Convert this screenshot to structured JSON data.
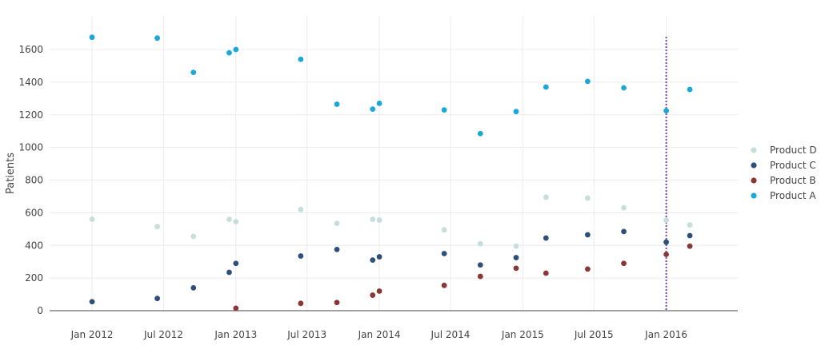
{
  "chart_data": {
    "type": "scatter",
    "title": "",
    "xlabel": "",
    "ylabel": "Patients",
    "ylim": [
      -50,
      1780
    ],
    "xlim": [
      "2011-09-15",
      "2016-07-01"
    ],
    "y_ticks": [
      0,
      200,
      400,
      600,
      800,
      1000,
      1200,
      1400,
      1600
    ],
    "x_ticks": [
      {
        "date": "2012-01-01",
        "label": "Jan 2012"
      },
      {
        "date": "2012-07-01",
        "label": "Jul 2012"
      },
      {
        "date": "2013-01-01",
        "label": "Jan 2013"
      },
      {
        "date": "2013-07-01",
        "label": "Jul 2013"
      },
      {
        "date": "2014-01-01",
        "label": "Jan 2014"
      },
      {
        "date": "2014-07-01",
        "label": "Jul 2014"
      },
      {
        "date": "2015-01-01",
        "label": "Jan 2015"
      },
      {
        "date": "2015-07-01",
        "label": "Jul 2015"
      },
      {
        "date": "2016-01-01",
        "label": "Jan 2016"
      }
    ],
    "grid": true,
    "legend_position": "right",
    "legend": [
      "Product D",
      "Product C",
      "Product B",
      "Product A"
    ],
    "vline": {
      "date": "2016-01-01",
      "color": "#7a4a9a"
    },
    "series": [
      {
        "name": "Product D",
        "color": "#c6dfdc",
        "points": [
          {
            "x": "2012-01-01",
            "y": 560
          },
          {
            "x": "2012-06-15",
            "y": 515
          },
          {
            "x": "2012-09-15",
            "y": 455
          },
          {
            "x": "2012-12-15",
            "y": 560
          },
          {
            "x": "2013-01-01",
            "y": 545
          },
          {
            "x": "2013-06-15",
            "y": 620
          },
          {
            "x": "2013-09-15",
            "y": 535
          },
          {
            "x": "2013-12-15",
            "y": 560
          },
          {
            "x": "2014-01-01",
            "y": 555
          },
          {
            "x": "2014-06-15",
            "y": 495
          },
          {
            "x": "2014-09-15",
            "y": 410
          },
          {
            "x": "2014-12-15",
            "y": 395
          },
          {
            "x": "2015-03-01",
            "y": 695
          },
          {
            "x": "2015-06-15",
            "y": 690
          },
          {
            "x": "2015-09-15",
            "y": 630
          },
          {
            "x": "2016-01-01",
            "y": 555
          },
          {
            "x": "2016-03-01",
            "y": 525
          }
        ]
      },
      {
        "name": "Product C",
        "color": "#2d4f79",
        "points": [
          {
            "x": "2012-01-01",
            "y": 55
          },
          {
            "x": "2012-06-15",
            "y": 75
          },
          {
            "x": "2012-09-15",
            "y": 140
          },
          {
            "x": "2012-12-15",
            "y": 235
          },
          {
            "x": "2013-01-01",
            "y": 290
          },
          {
            "x": "2013-06-15",
            "y": 335
          },
          {
            "x": "2013-09-15",
            "y": 375
          },
          {
            "x": "2013-12-15",
            "y": 310
          },
          {
            "x": "2014-01-01",
            "y": 330
          },
          {
            "x": "2014-06-15",
            "y": 350
          },
          {
            "x": "2014-09-15",
            "y": 280
          },
          {
            "x": "2014-12-15",
            "y": 325
          },
          {
            "x": "2015-03-01",
            "y": 445
          },
          {
            "x": "2015-06-15",
            "y": 465
          },
          {
            "x": "2015-09-15",
            "y": 485
          },
          {
            "x": "2016-01-01",
            "y": 420
          },
          {
            "x": "2016-03-01",
            "y": 460
          }
        ]
      },
      {
        "name": "Product B",
        "color": "#8b3535",
        "points": [
          {
            "x": "2013-01-01",
            "y": 15
          },
          {
            "x": "2013-06-15",
            "y": 45
          },
          {
            "x": "2013-09-15",
            "y": 50
          },
          {
            "x": "2013-12-15",
            "y": 95
          },
          {
            "x": "2014-01-01",
            "y": 120
          },
          {
            "x": "2014-06-15",
            "y": 155
          },
          {
            "x": "2014-09-15",
            "y": 210
          },
          {
            "x": "2014-12-15",
            "y": 260
          },
          {
            "x": "2015-03-01",
            "y": 230
          },
          {
            "x": "2015-06-15",
            "y": 255
          },
          {
            "x": "2015-09-15",
            "y": 290
          },
          {
            "x": "2016-01-01",
            "y": 345
          },
          {
            "x": "2016-03-01",
            "y": 395
          }
        ]
      },
      {
        "name": "Product A",
        "color": "#1aa8d8",
        "points": [
          {
            "x": "2012-01-01",
            "y": 1675
          },
          {
            "x": "2012-06-15",
            "y": 1670
          },
          {
            "x": "2012-09-15",
            "y": 1460
          },
          {
            "x": "2012-12-15",
            "y": 1580
          },
          {
            "x": "2013-01-01",
            "y": 1600
          },
          {
            "x": "2013-06-15",
            "y": 1540
          },
          {
            "x": "2013-09-15",
            "y": 1265
          },
          {
            "x": "2013-12-15",
            "y": 1235
          },
          {
            "x": "2014-01-01",
            "y": 1270
          },
          {
            "x": "2014-06-15",
            "y": 1230
          },
          {
            "x": "2014-09-15",
            "y": 1085
          },
          {
            "x": "2014-12-15",
            "y": 1220
          },
          {
            "x": "2015-03-01",
            "y": 1370
          },
          {
            "x": "2015-06-15",
            "y": 1405
          },
          {
            "x": "2015-09-15",
            "y": 1365
          },
          {
            "x": "2016-01-01",
            "y": 1225
          },
          {
            "x": "2016-03-01",
            "y": 1355
          }
        ]
      }
    ]
  }
}
